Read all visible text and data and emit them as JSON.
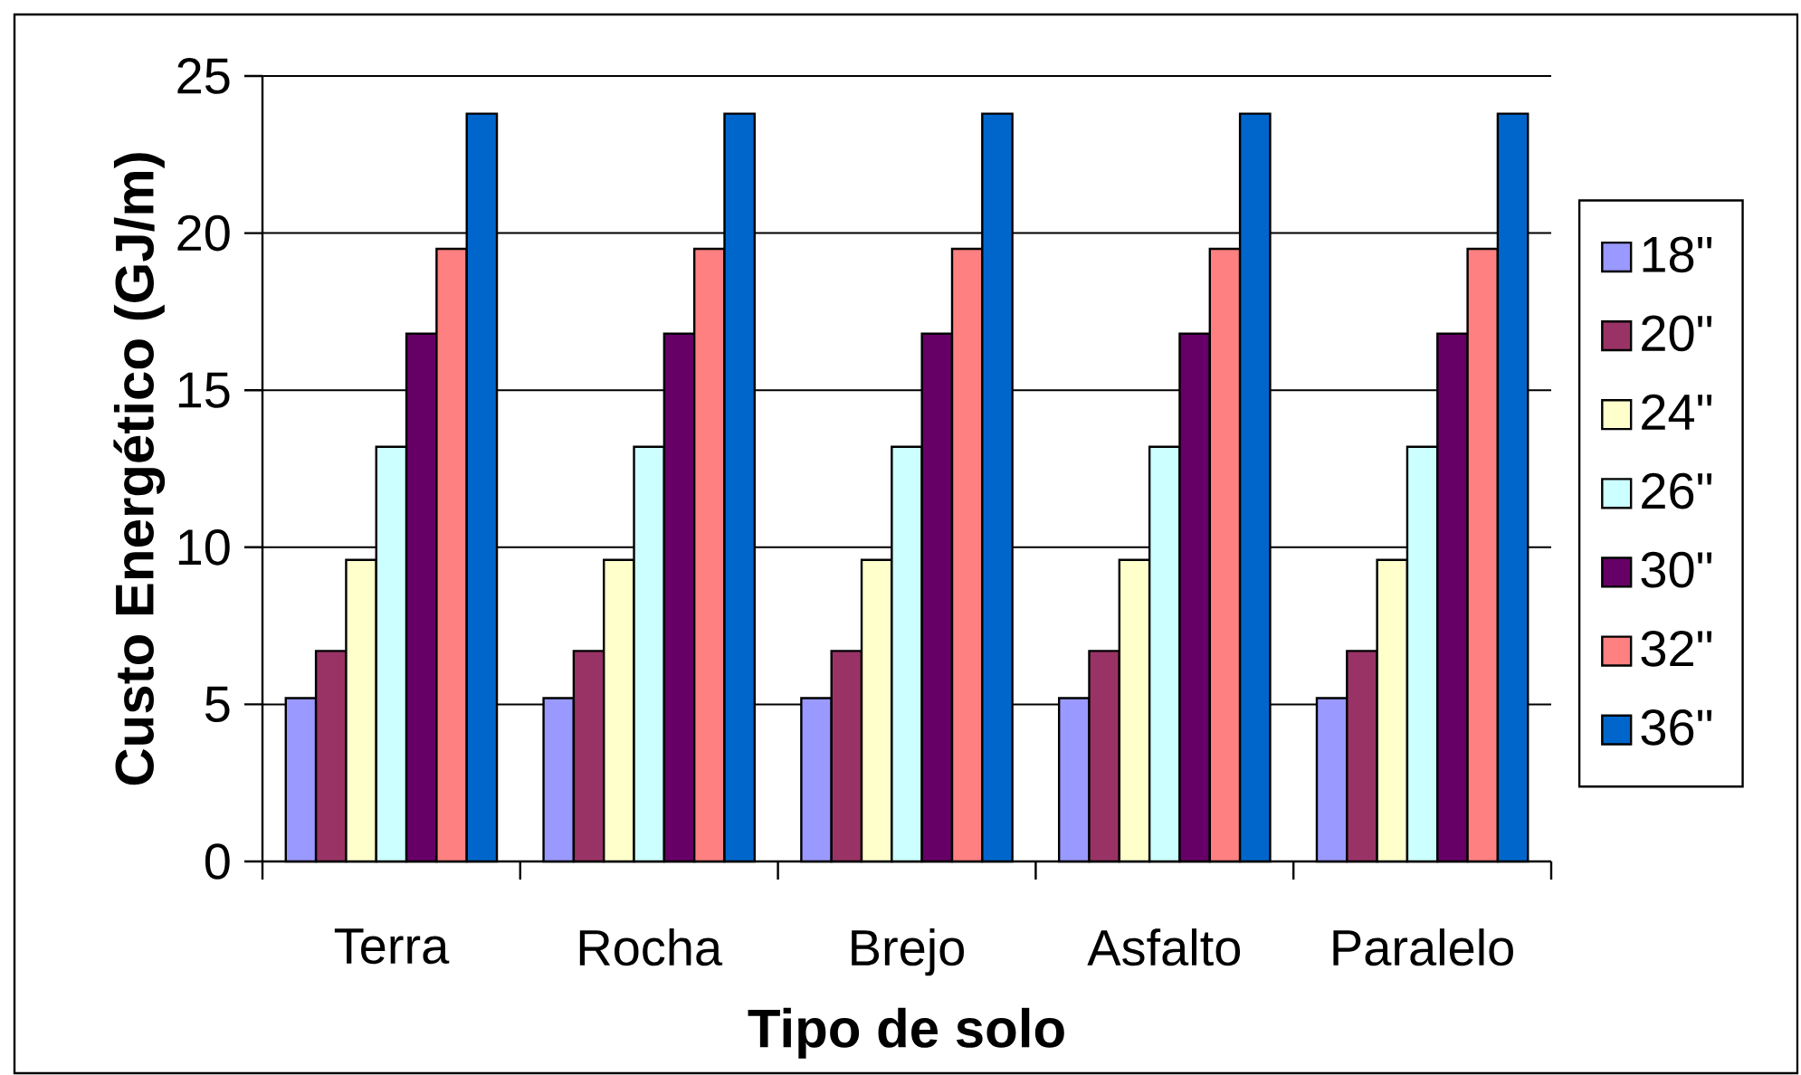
{
  "chart_data": {
    "type": "bar",
    "xlabel": "Tipo de solo",
    "ylabel": "Custo Energético (GJ/m)",
    "categories": [
      "Terra",
      "Rocha",
      "Brejo",
      "Asfalto",
      "Paralelo"
    ],
    "series": [
      {
        "name": "18\"",
        "color": "#9999ff",
        "values": [
          5.2,
          5.2,
          5.2,
          5.2,
          5.2
        ]
      },
      {
        "name": "20\"",
        "color": "#993366",
        "values": [
          6.7,
          6.7,
          6.7,
          6.7,
          6.7
        ]
      },
      {
        "name": "24\"",
        "color": "#ffffcc",
        "values": [
          9.6,
          9.6,
          9.6,
          9.6,
          9.6
        ]
      },
      {
        "name": "26\"",
        "color": "#ccffff",
        "values": [
          13.2,
          13.2,
          13.2,
          13.2,
          13.2
        ]
      },
      {
        "name": "30\"",
        "color": "#660066",
        "values": [
          16.8,
          16.8,
          16.8,
          16.8,
          16.8
        ]
      },
      {
        "name": "32\"",
        "color": "#ff8080",
        "values": [
          19.5,
          19.5,
          19.5,
          19.5,
          19.5
        ]
      },
      {
        "name": "36\"",
        "color": "#0066cc",
        "values": [
          23.8,
          23.8,
          23.8,
          23.8,
          23.8
        ]
      }
    ],
    "ylim": [
      0,
      25
    ],
    "yticks": [
      0,
      5,
      10,
      15,
      20,
      25
    ],
    "grid": "y",
    "legend": "right"
  }
}
